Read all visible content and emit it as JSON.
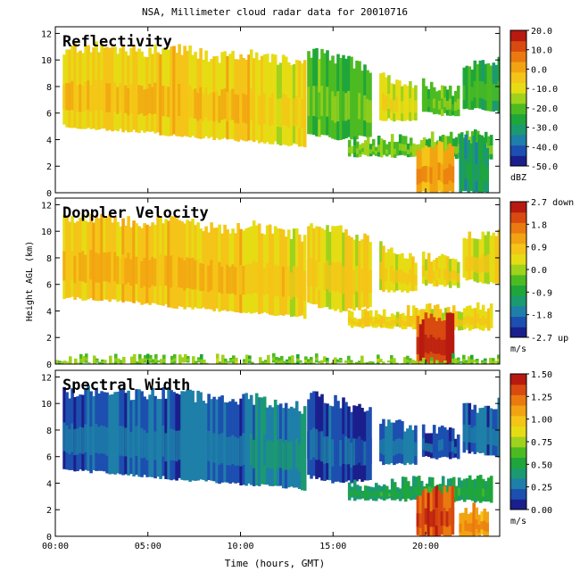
{
  "figure": {
    "title": "NSA, Millimeter cloud radar data for 20010716",
    "xlabel": "Time (hours, GMT)",
    "ylabel": "Height AGL (km)"
  },
  "colors": {
    "scale": [
      "#1a1f8c",
      "#1d4fb0",
      "#1e7fa8",
      "#1b9a70",
      "#1fa63a",
      "#4cbb22",
      "#9fd21c",
      "#e6dc14",
      "#f5c418",
      "#f2a312",
      "#ea7a10",
      "#d84a10",
      "#b81a10"
    ],
    "background": "#ffffff"
  },
  "chart_data": [
    {
      "type": "heatmap",
      "title": "Reflectivity",
      "x_range": [
        0,
        24
      ],
      "ylim": [
        0,
        12.5
      ],
      "x_ticks": [
        "00:00",
        "05:00",
        "10:00",
        "15:00",
        "20:00"
      ],
      "x_tick_values": [
        0,
        5,
        10,
        15,
        20
      ],
      "y_ticks": [
        "0",
        "2",
        "4",
        "6",
        "8",
        "10",
        "12"
      ],
      "y_tick_values": [
        0,
        2,
        4,
        6,
        8,
        10,
        12
      ],
      "colorbar": {
        "ticks": [
          "20.0",
          "10.0",
          "0.0",
          "-10.0",
          "-20.0",
          "-30.0",
          "-40.0",
          "-50.0"
        ],
        "range": [
          -50,
          20
        ],
        "unit": "dBZ"
      },
      "layers": [
        {
          "t_start": 0.4,
          "t_end": 10.5,
          "base_km": [
            5.0,
            4.8,
            4.6,
            4.3,
            4.1,
            3.9
          ],
          "top_km": [
            10.8,
            11.0,
            10.6,
            10.9,
            10.2,
            10.4
          ],
          "value": -6
        },
        {
          "t_start": 10.5,
          "t_end": 13.5,
          "base_km": [
            3.9,
            3.7,
            3.5
          ],
          "top_km": [
            10.4,
            10.0,
            9.6
          ],
          "value": -10
        },
        {
          "t_start": 13.6,
          "t_end": 17.0,
          "base_km": [
            4.5,
            4.0,
            4.3
          ],
          "top_km": [
            10.6,
            10.1,
            9.3
          ],
          "value": -22
        },
        {
          "t_start": 17.5,
          "t_end": 19.5,
          "base_km": [
            5.5,
            5.4
          ],
          "top_km": [
            8.8,
            7.9
          ],
          "value": -12
        },
        {
          "t_start": 19.8,
          "t_end": 21.8,
          "base_km": [
            6.0,
            5.8
          ],
          "top_km": [
            8.2,
            7.6
          ],
          "value": -22
        },
        {
          "t_start": 22.0,
          "t_end": 24.0,
          "base_km": [
            6.4,
            6.0
          ],
          "top_km": [
            9.6,
            10.0
          ],
          "value": -25
        },
        {
          "t_start": 15.8,
          "t_end": 23.5,
          "base_km": [
            2.8,
            2.6
          ],
          "top_km": [
            3.8,
            4.4
          ],
          "value": -20
        },
        {
          "t_start": 19.5,
          "t_end": 21.4,
          "base_km": [
            0.0,
            0.0
          ],
          "top_km": [
            3.4,
            3.6
          ],
          "value": 0
        },
        {
          "t_start": 21.8,
          "t_end": 23.3,
          "base_km": [
            0.0,
            0.0
          ],
          "top_km": [
            4.2,
            3.8
          ],
          "value": -32
        }
      ]
    },
    {
      "type": "heatmap",
      "title": "Doppler Velocity",
      "x_range": [
        0,
        24
      ],
      "ylim": [
        0,
        12.5
      ],
      "x_ticks": [
        "00:00",
        "05:00",
        "10:00",
        "15:00",
        "20:00"
      ],
      "x_tick_values": [
        0,
        5,
        10,
        15,
        20
      ],
      "y_ticks": [
        "0",
        "2",
        "4",
        "6",
        "8",
        "10",
        "12"
      ],
      "y_tick_values": [
        0,
        2,
        4,
        6,
        8,
        10,
        12
      ],
      "colorbar": {
        "ticks": [
          "2.7 down",
          "1.8",
          "0.9",
          "0.0",
          "-0.9",
          "-1.8",
          "-2.7 up"
        ],
        "range": [
          -2.7,
          2.7
        ],
        "unit": "m/s"
      },
      "layers": [
        {
          "t_start": 0.4,
          "t_end": 10.5,
          "base_km": [
            5.0,
            4.8,
            4.6,
            4.3,
            4.1,
            3.9
          ],
          "top_km": [
            10.8,
            11.0,
            10.6,
            10.9,
            10.2,
            10.4
          ],
          "value": 0.75
        },
        {
          "t_start": 10.5,
          "t_end": 13.5,
          "base_km": [
            3.9,
            3.7,
            3.5
          ],
          "top_km": [
            10.4,
            10.0,
            9.6
          ],
          "value": 0.55
        },
        {
          "t_start": 13.6,
          "t_end": 17.0,
          "base_km": [
            4.5,
            4.0,
            4.3
          ],
          "top_km": [
            10.6,
            10.1,
            9.3
          ],
          "value": 0.45
        },
        {
          "t_start": 17.5,
          "t_end": 19.5,
          "base_km": [
            5.5,
            5.4
          ],
          "top_km": [
            8.8,
            7.9
          ],
          "value": 0.5
        },
        {
          "t_start": 19.8,
          "t_end": 21.8,
          "base_km": [
            6.0,
            5.8
          ],
          "top_km": [
            8.2,
            7.6
          ],
          "value": 0.4
        },
        {
          "t_start": 22.0,
          "t_end": 24.0,
          "base_km": [
            6.4,
            6.0
          ],
          "top_km": [
            9.6,
            10.0
          ],
          "value": 0.45
        },
        {
          "t_start": 15.8,
          "t_end": 23.5,
          "base_km": [
            2.8,
            2.6
          ],
          "top_km": [
            3.8,
            4.4
          ],
          "value": 0.5
        },
        {
          "t_start": 19.5,
          "t_end": 21.4,
          "base_km": [
            0.0,
            0.0
          ],
          "top_km": [
            3.4,
            3.6
          ],
          "value": 2.2
        },
        {
          "t_start": 0.0,
          "t_end": 24.0,
          "base_km": [
            0.0,
            0.0
          ],
          "top_km": [
            0.35,
            0.35
          ],
          "value": -0.3
        }
      ]
    },
    {
      "type": "heatmap",
      "title": "Spectral Width",
      "x_range": [
        0,
        24
      ],
      "ylim": [
        0,
        12.5
      ],
      "x_ticks": [
        "00:00",
        "05:00",
        "10:00",
        "15:00",
        "20:00"
      ],
      "x_tick_values": [
        0,
        5,
        10,
        15,
        20
      ],
      "y_ticks": [
        "0",
        "2",
        "4",
        "6",
        "8",
        "10",
        "12"
      ],
      "y_tick_values": [
        0,
        2,
        4,
        6,
        8,
        10,
        12
      ],
      "colorbar": {
        "ticks": [
          "1.50",
          "1.25",
          "1.00",
          "0.75",
          "0.50",
          "0.25",
          "0.00"
        ],
        "range": [
          0,
          1.5
        ],
        "unit": "m/s"
      },
      "layers": [
        {
          "t_start": 0.4,
          "t_end": 10.5,
          "base_km": [
            5.0,
            4.8,
            4.6,
            4.3,
            4.1,
            3.9
          ],
          "top_km": [
            10.8,
            11.0,
            10.6,
            10.9,
            10.2,
            10.4
          ],
          "value": 0.2
        },
        {
          "t_start": 10.5,
          "t_end": 13.5,
          "base_km": [
            3.9,
            3.7,
            3.5
          ],
          "top_km": [
            10.4,
            10.0,
            9.6
          ],
          "value": 0.3
        },
        {
          "t_start": 13.6,
          "t_end": 17.0,
          "base_km": [
            4.5,
            4.0,
            4.3
          ],
          "top_km": [
            10.6,
            10.1,
            9.3
          ],
          "value": 0.15
        },
        {
          "t_start": 17.5,
          "t_end": 19.5,
          "base_km": [
            5.5,
            5.4
          ],
          "top_km": [
            8.8,
            7.9
          ],
          "value": 0.2
        },
        {
          "t_start": 19.8,
          "t_end": 21.8,
          "base_km": [
            6.0,
            5.8
          ],
          "top_km": [
            8.2,
            7.6
          ],
          "value": 0.15
        },
        {
          "t_start": 22.0,
          "t_end": 24.0,
          "base_km": [
            6.4,
            6.0
          ],
          "top_km": [
            9.6,
            10.0
          ],
          "value": 0.2
        },
        {
          "t_start": 15.8,
          "t_end": 23.5,
          "base_km": [
            2.8,
            2.6
          ],
          "top_km": [
            3.8,
            4.4
          ],
          "value": 0.45
        },
        {
          "t_start": 19.5,
          "t_end": 21.4,
          "base_km": [
            0.0,
            0.0
          ],
          "top_km": [
            3.4,
            3.6
          ],
          "value": 1.3
        },
        {
          "t_start": 21.8,
          "t_end": 23.3,
          "base_km": [
            0.0,
            0.0
          ],
          "top_km": [
            2.2,
            2.0
          ],
          "value": 1.1
        }
      ]
    }
  ]
}
